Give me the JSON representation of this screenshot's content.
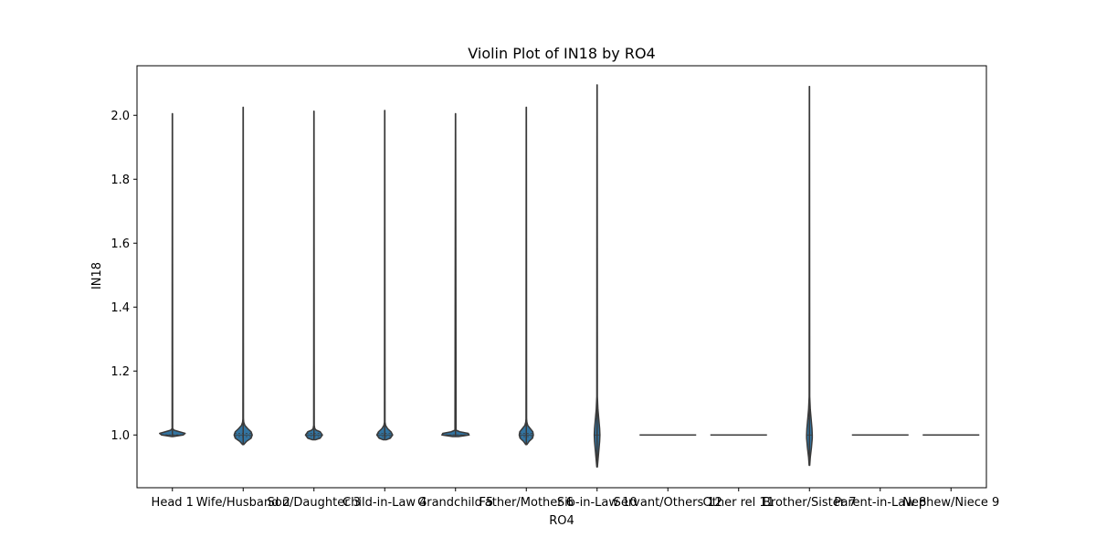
{
  "chart_data": {
    "type": "violin",
    "title": "Violin Plot of IN18 by RO4",
    "xlabel": "RO4",
    "ylabel": "IN18",
    "ylim": [
      0.835,
      2.155
    ],
    "yticks": [
      1.0,
      1.2,
      1.4,
      1.6,
      1.8,
      2.0
    ],
    "ytick_labels": [
      "1.0",
      "1.2",
      "1.4",
      "1.6",
      "1.8",
      "2.0"
    ],
    "categories": [
      "Head 1",
      "Wife/Husband 2",
      "Son/Daughter 3",
      "Child-in-Law 4",
      "Grandchild 5",
      "Father/Mother 6",
      "Sib-in-Law 10",
      "Servant/Others 12",
      "Other rel 11",
      "Brother/Sister 7",
      "Parent-in-Law 8",
      "Nephew/Niece 9"
    ],
    "grid": false,
    "colors": {
      "fill": "#3274a1",
      "edge": "#3a3a3a"
    },
    "violins": [
      {
        "category": "Head 1",
        "min": 0.995,
        "max": 2.005,
        "median": 1.0,
        "q1": 1.0,
        "q3": 1.0,
        "profile": [
          [
            0.995,
            0.02
          ],
          [
            1.0,
            0.38
          ],
          [
            1.005,
            0.45
          ],
          [
            1.01,
            0.25
          ],
          [
            1.015,
            0.06
          ],
          [
            1.02,
            0.01
          ]
        ]
      },
      {
        "category": "Wife/Husband 2",
        "min": 0.97,
        "max": 2.025,
        "median": 1.0,
        "q1": 0.995,
        "q3": 1.005,
        "profile": [
          [
            0.97,
            0.02
          ],
          [
            0.98,
            0.12
          ],
          [
            0.99,
            0.28
          ],
          [
            1.0,
            0.32
          ],
          [
            1.01,
            0.28
          ],
          [
            1.02,
            0.16
          ],
          [
            1.03,
            0.06
          ],
          [
            1.04,
            0.02
          ],
          [
            1.05,
            0.01
          ]
        ]
      },
      {
        "category": "Son/Daughter 3",
        "min": 0.985,
        "max": 2.013,
        "median": 1.0,
        "q1": 0.995,
        "q3": 1.005,
        "profile": [
          [
            0.985,
            0.05
          ],
          [
            0.99,
            0.22
          ],
          [
            1.0,
            0.3
          ],
          [
            1.01,
            0.22
          ],
          [
            1.015,
            0.08
          ],
          [
            1.02,
            0.03
          ],
          [
            1.03,
            0.01
          ]
        ]
      },
      {
        "category": "Child-in-Law 4",
        "min": 0.985,
        "max": 2.015,
        "median": 1.0,
        "q1": 0.995,
        "q3": 1.005,
        "profile": [
          [
            0.985,
            0.05
          ],
          [
            0.99,
            0.2
          ],
          [
            1.0,
            0.28
          ],
          [
            1.01,
            0.22
          ],
          [
            1.02,
            0.1
          ],
          [
            1.03,
            0.03
          ],
          [
            1.04,
            0.01
          ]
        ]
      },
      {
        "category": "Grandchild 5",
        "min": 0.995,
        "max": 2.005,
        "median": 1.0,
        "q1": 1.0,
        "q3": 1.0,
        "profile": [
          [
            0.995,
            0.1
          ],
          [
            1.0,
            0.48
          ],
          [
            1.005,
            0.45
          ],
          [
            1.01,
            0.15
          ],
          [
            1.015,
            0.02
          ]
        ]
      },
      {
        "category": "Father/Mother 6",
        "min": 0.97,
        "max": 2.025,
        "median": 1.0,
        "q1": 0.995,
        "q3": 1.005,
        "profile": [
          [
            0.97,
            0.02
          ],
          [
            0.98,
            0.1
          ],
          [
            0.99,
            0.22
          ],
          [
            1.0,
            0.25
          ],
          [
            1.01,
            0.23
          ],
          [
            1.02,
            0.14
          ],
          [
            1.03,
            0.05
          ],
          [
            1.04,
            0.02
          ],
          [
            1.05,
            0.01
          ]
        ]
      },
      {
        "category": "Sib-in-Law 10",
        "min": 0.9,
        "max": 2.095,
        "median": 1.0,
        "q1": 0.95,
        "q3": 1.05,
        "profile": [
          [
            0.9,
            0.01
          ],
          [
            0.92,
            0.03
          ],
          [
            0.95,
            0.06
          ],
          [
            0.98,
            0.09
          ],
          [
            1.0,
            0.1
          ],
          [
            1.02,
            0.09
          ],
          [
            1.05,
            0.06
          ],
          [
            1.08,
            0.03
          ],
          [
            1.12,
            0.01
          ]
        ]
      },
      {
        "category": "Servant/Others 12",
        "flat": 1.0
      },
      {
        "category": "Other rel 11",
        "flat": 1.0
      },
      {
        "category": "Brother/Sister 7",
        "min": 0.905,
        "max": 2.09,
        "median": 1.0,
        "q1": 0.95,
        "q3": 1.05,
        "profile": [
          [
            0.905,
            0.01
          ],
          [
            0.93,
            0.03
          ],
          [
            0.96,
            0.07
          ],
          [
            0.99,
            0.1
          ],
          [
            1.0,
            0.1
          ],
          [
            1.02,
            0.09
          ],
          [
            1.05,
            0.06
          ],
          [
            1.08,
            0.03
          ],
          [
            1.12,
            0.01
          ]
        ]
      },
      {
        "category": "Parent-in-Law 8",
        "flat": 1.0
      },
      {
        "category": "Nephew/Niece 9",
        "flat": 1.0
      }
    ]
  }
}
